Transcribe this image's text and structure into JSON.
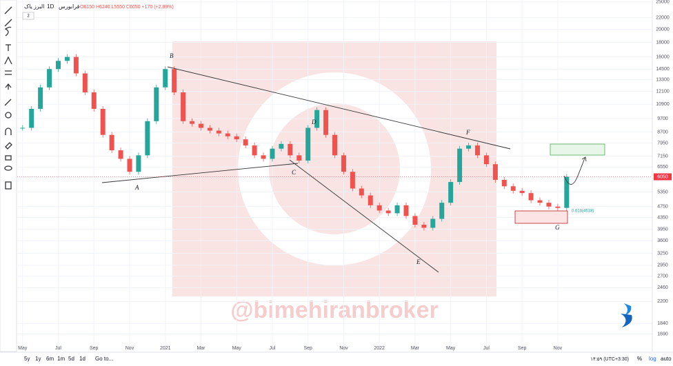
{
  "header": {
    "symbol": "البرز یاک",
    "interval": "1D",
    "exchange": "فرابورس",
    "ohlc": "O6150 H6240 L5550 C6050 +170 (+2.89%)",
    "badge": "2"
  },
  "chart_data": {
    "type": "candlestick",
    "x": [
      0,
      0.5,
      1,
      1.5,
      2,
      2.5,
      3,
      3.5,
      4,
      4.5,
      5,
      5.5,
      6,
      6.5,
      7,
      7.5,
      8,
      8.5,
      9,
      9.5,
      10,
      10.5,
      11,
      11.5,
      12,
      12.5,
      13,
      13.5,
      14,
      14.5,
      15,
      15.5,
      16,
      16.5,
      17,
      17.5,
      18,
      18.5,
      19,
      19.5,
      20,
      20.5,
      21,
      21.5,
      22,
      22.5,
      23,
      23.5,
      24,
      24.5,
      25,
      25.5,
      26,
      26.5,
      27,
      27.5,
      28,
      28.5,
      29,
      29.5,
      30,
      30.5
    ],
    "values": [
      9000,
      10500,
      12500,
      14500,
      15500,
      16000,
      14000,
      12000,
      10500,
      8500,
      7500,
      7000,
      6300,
      7200,
      9500,
      12500,
      14500,
      12000,
      9500,
      9300,
      9000,
      8800,
      8600,
      8400,
      8200,
      7800,
      7200,
      7000,
      7600,
      7900,
      7200,
      6900,
      9000,
      10400,
      8500,
      7200,
      6300,
      5500,
      5200,
      4800,
      4600,
      4500,
      4800,
      4400,
      4100,
      4000,
      4300,
      4900,
      5800,
      7600,
      7800,
      7200,
      6700,
      5900,
      5600,
      5400,
      5300,
      5000,
      4900,
      4750,
      4700,
      6050
    ],
    "up_color": "#26a69a",
    "down_color": "#ef5350",
    "xlim": [
      -0.3,
      35.3
    ],
    "xticks": [
      {
        "value": 0,
        "label": "May"
      },
      {
        "value": 2,
        "label": "Jul"
      },
      {
        "value": 4,
        "label": "Sep"
      },
      {
        "value": 6,
        "label": "Nov"
      },
      {
        "value": 8,
        "label": "2021"
      },
      {
        "value": 10,
        "label": "Mar"
      },
      {
        "value": 12,
        "label": "May"
      },
      {
        "value": 14,
        "label": "Jul"
      },
      {
        "value": 16,
        "label": "Sep"
      },
      {
        "value": 18,
        "label": "Nov"
      },
      {
        "value": 20,
        "label": "2022"
      },
      {
        "value": 22,
        "label": "Mar"
      },
      {
        "value": 24,
        "label": "May"
      },
      {
        "value": 26,
        "label": "Jul"
      },
      {
        "value": 28,
        "label": "Sep"
      },
      {
        "value": 30,
        "label": "Nov"
      }
    ],
    "ylim": [
      1465,
      25400
    ],
    "yticks": [
      25000,
      22000,
      20000,
      18000,
      16000,
      14500,
      13300,
      12100,
      10900,
      9700,
      8700,
      7950,
      7150,
      6550,
      5350,
      4750,
      4350,
      3950,
      3600,
      3250,
      2950,
      2700,
      2460,
      2200,
      1840,
      1690
    ],
    "log_scale": true,
    "grid": true,
    "last_price": 6050,
    "last_price_color": "#f23645"
  },
  "annotations": {
    "points": [
      "A",
      "B",
      "C",
      "D",
      "E",
      "F",
      "G"
    ],
    "fib_label": "0.618(4618)"
  },
  "watermark": "@bimehiranbroker",
  "footer": {
    "ranges": [
      "5y",
      "1y",
      "6m",
      "1m",
      "5d",
      "1d"
    ],
    "goto": "Go to...",
    "time": "۱۴:۵۹ (UTC+3:30)",
    "options": [
      "%",
      "log",
      "auto"
    ]
  }
}
